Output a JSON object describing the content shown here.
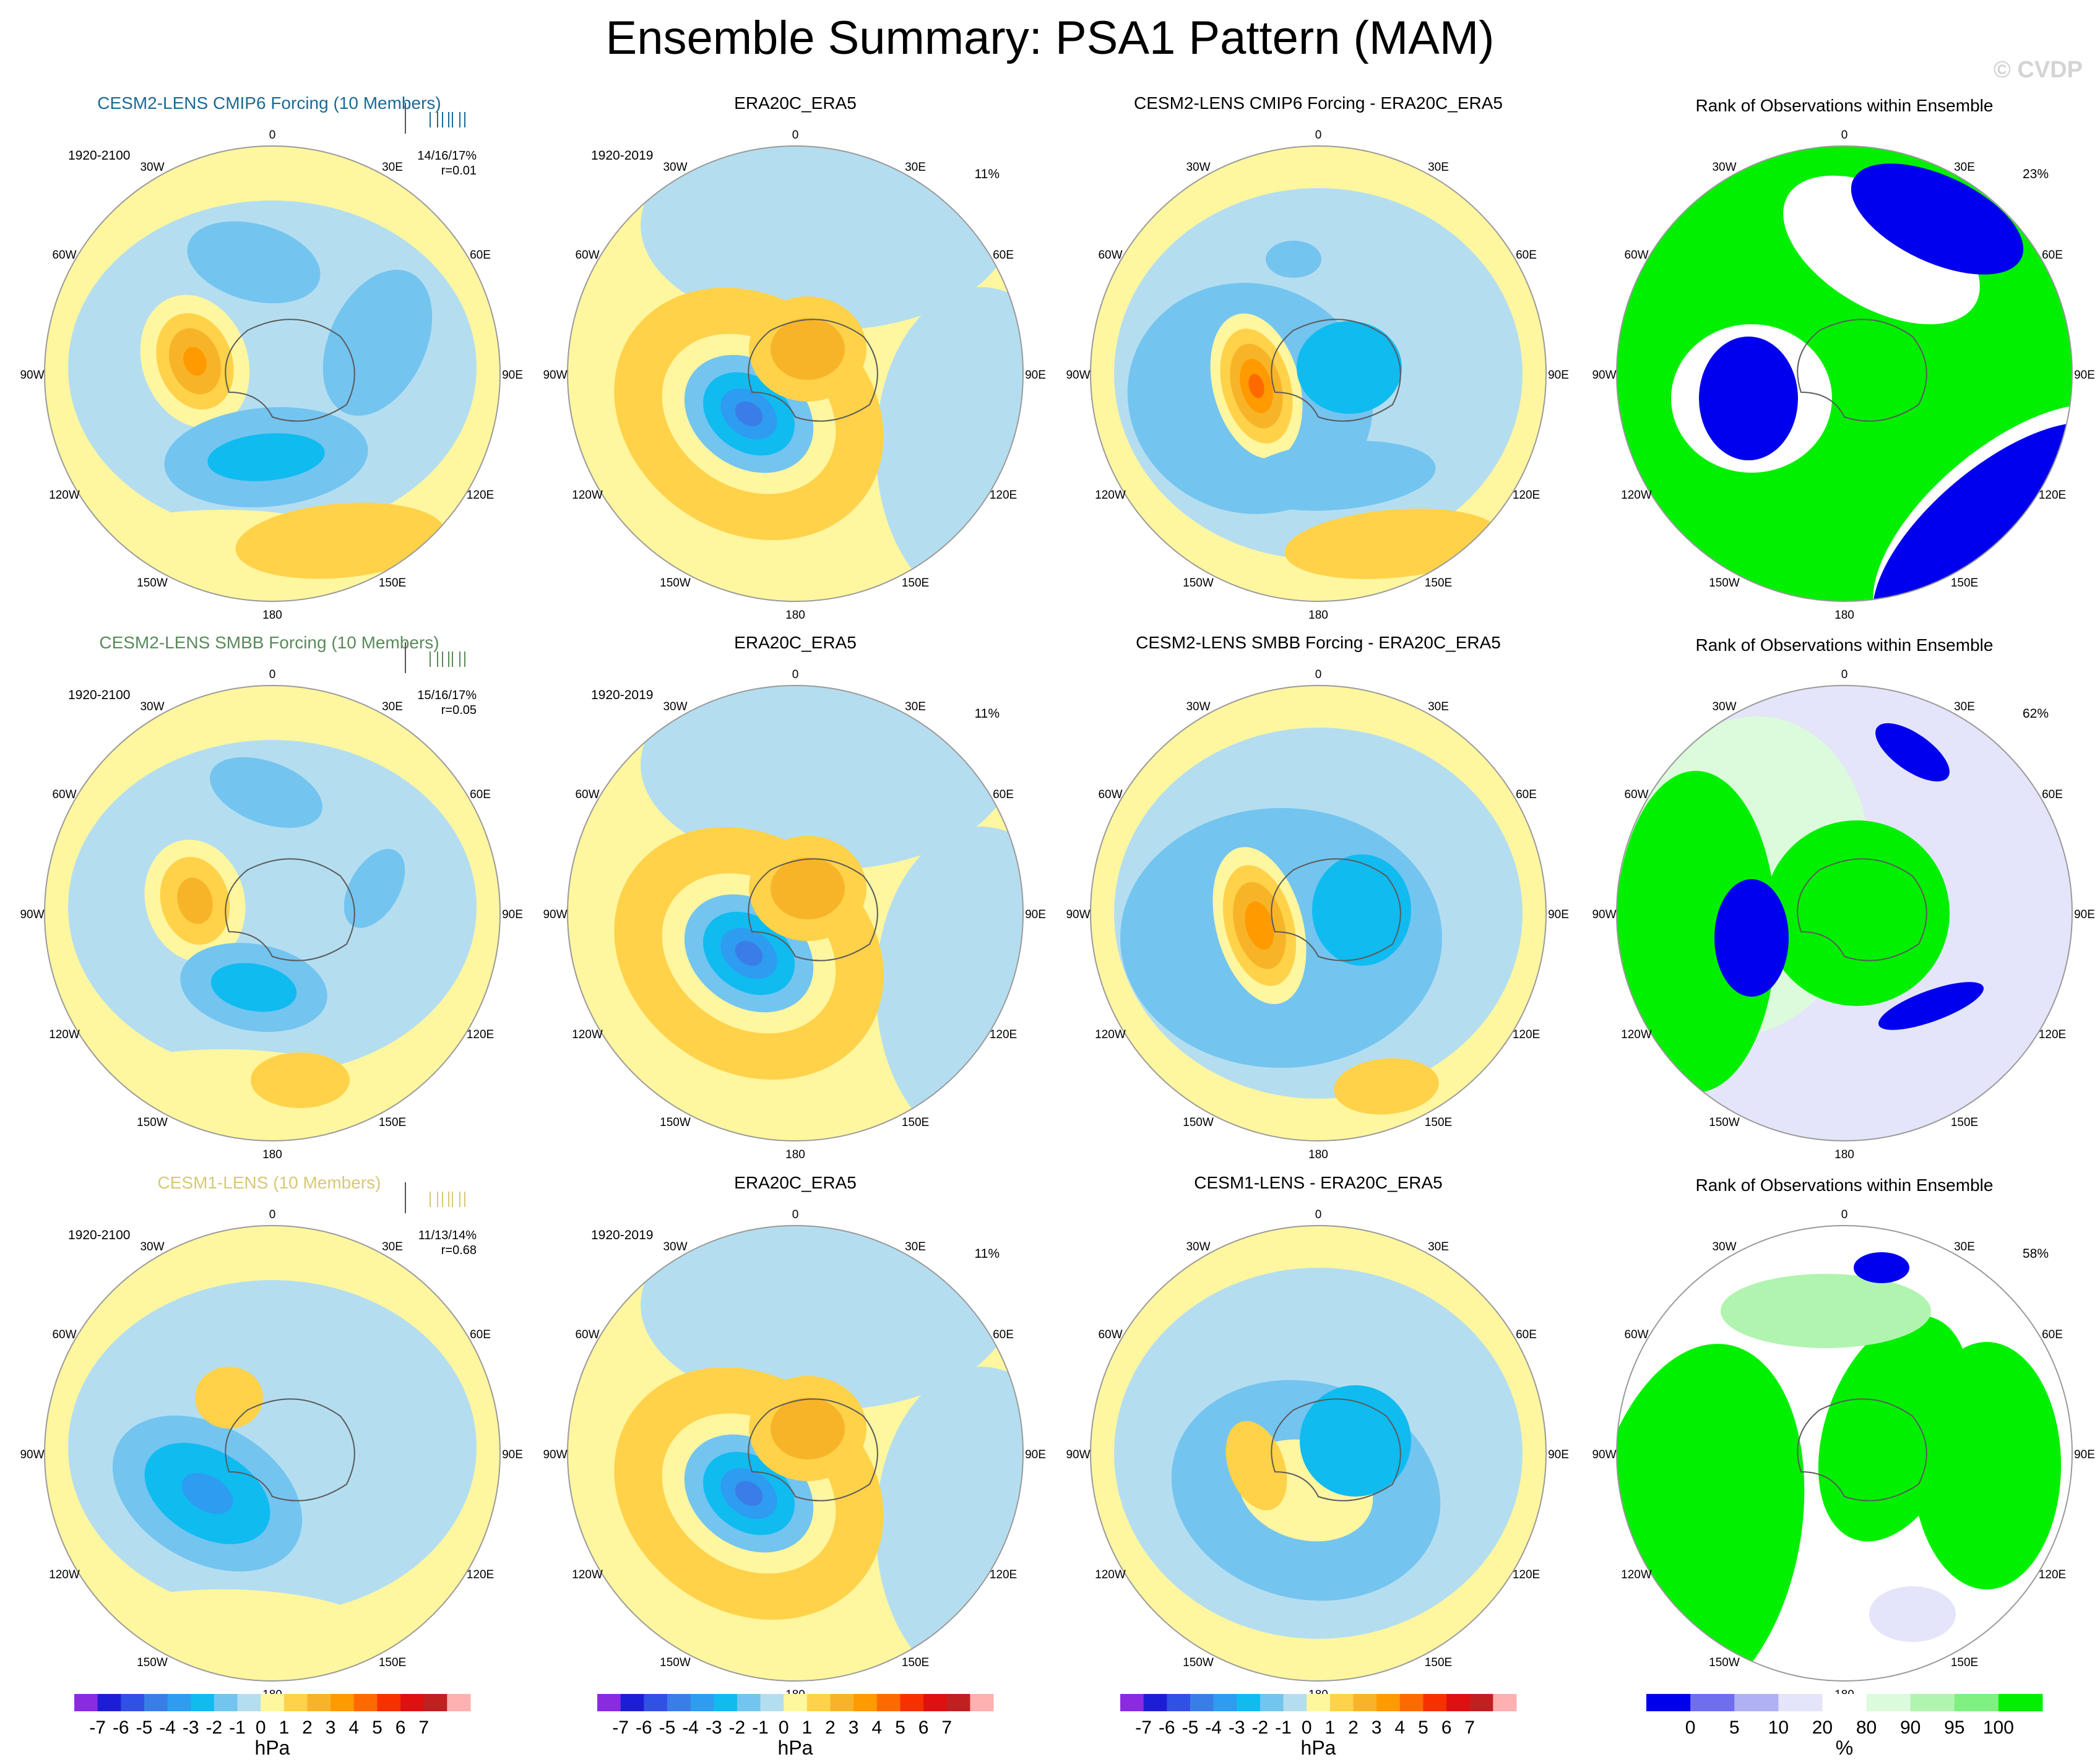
{
  "page": {
    "title": "Ensemble Summary: PSA1 Pattern (MAM)",
    "credit": "© CVDP"
  },
  "chart_data": {
    "type": "heatmap",
    "projection": "south-polar-stereographic",
    "longitude_labels": [
      "0",
      "30E",
      "60E",
      "90E",
      "120E",
      "150E",
      "180",
      "150W",
      "120W",
      "90W",
      "60W",
      "30W"
    ],
    "colorbars": [
      {
        "id": "pressure",
        "unit": "hPa",
        "labels": [
          "-7",
          "-6",
          "-5",
          "-4",
          "-3",
          "-2",
          "-1",
          "0",
          "1",
          "2",
          "3",
          "4",
          "5",
          "6",
          "7"
        ],
        "colors": [
          "#8a2be2",
          "#1d1dd8",
          "#3050e6",
          "#3a7de8",
          "#2e9cf0",
          "#10bbf0",
          "#74c4f0",
          "#b4def0",
          "#fff6a0",
          "#ffd24a",
          "#f8b428",
          "#ff9a00",
          "#ff6a00",
          "#f83000",
          "#e01010",
          "#c02020",
          "#ffb0b0"
        ]
      },
      {
        "id": "rank",
        "unit": "%",
        "labels": [
          "0",
          "5",
          "10",
          "20",
          "80",
          "90",
          "95",
          "100"
        ],
        "colors": [
          "#0000ee",
          "#6e6eee",
          "#b0b0f4",
          "#e4e4fa",
          "#ffffff",
          "#dcfadc",
          "#b0f4b0",
          "#80f080",
          "#00f000"
        ]
      }
    ],
    "rows": [
      {
        "model_title": "CESM2-LENS CMIP6 Forcing (10 Members)",
        "model_color": "#1a6a96",
        "model_period": "1920-2100",
        "model_stats": [
          "14/16/17%",
          "r=0.01"
        ],
        "obs_title": "ERA20C_ERA5",
        "obs_period": "1920-2019",
        "obs_pct": "11%",
        "diff_title": "CESM2-LENS CMIP6 Forcing - ERA20C_ERA5",
        "rank_title": "Rank of Observations within Ensemble",
        "rank_pct": "23%"
      },
      {
        "model_title": "CESM2-LENS SMBB Forcing (10 Members)",
        "model_color": "#5a8a5a",
        "model_period": "1920-2100",
        "model_stats": [
          "15/16/17%",
          "r=0.05"
        ],
        "obs_title": "ERA20C_ERA5",
        "obs_period": "1920-2019",
        "obs_pct": "11%",
        "diff_title": "CESM2-LENS SMBB Forcing - ERA20C_ERA5",
        "rank_title": "Rank of Observations within Ensemble",
        "rank_pct": "62%"
      },
      {
        "model_title": "CESM1-LENS (10 Members)",
        "model_color": "#d8c878",
        "model_period": "1920-2100",
        "model_stats": [
          "11/13/14%",
          "r=0.68"
        ],
        "obs_title": "ERA20C_ERA5",
        "obs_period": "1920-2019",
        "obs_pct": "11%",
        "diff_title": "CESM1-LENS - ERA20C_ERA5",
        "rank_title": "Rank of Observations within Ensemble",
        "rank_pct": "58%"
      }
    ]
  }
}
